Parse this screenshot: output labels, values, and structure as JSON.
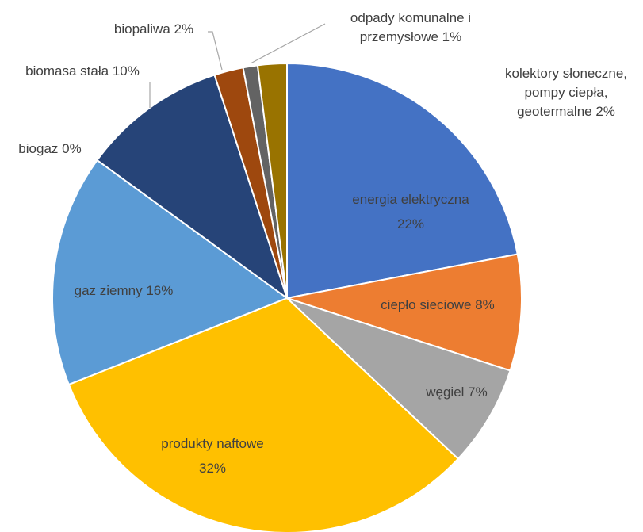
{
  "chart_data": {
    "type": "pie",
    "colors": {
      "energia elektryczna": "#4472C4",
      "ciepło sieciowe": "#ED7D31",
      "węgiel": "#A5A5A5",
      "produkty naftowe": "#FFC000",
      "gaz ziemny": "#5B9BD5",
      "biogaz": "#70AD47",
      "biomasa stała": "#264478",
      "biopaliwa": "#9E480E",
      "odpady komunalne i przemysłowe": "#636363",
      "kolektory słoneczne, pompy ciepła, geotermalne": "#997300"
    },
    "slices": [
      {
        "name": "energia elektryczna",
        "value": 22,
        "label_lines": [
          "energia elektryczna",
          "22%"
        ]
      },
      {
        "name": "ciepło sieciowe",
        "value": 8,
        "label_lines": [
          "ciepło sieciowe  8%"
        ]
      },
      {
        "name": "węgiel",
        "value": 7,
        "label_lines": [
          "węgiel  7%"
        ]
      },
      {
        "name": "produkty naftowe",
        "value": 32,
        "label_lines": [
          "produkty naftowe",
          "32%"
        ]
      },
      {
        "name": "gaz ziemny",
        "value": 16,
        "label_lines": [
          "gaz ziemny  16%"
        ]
      },
      {
        "name": "biogaz",
        "value": 0,
        "label_lines": [
          "biogaz  0%"
        ]
      },
      {
        "name": "biomasa stała",
        "value": 10,
        "label_lines": [
          "biomasa stała  10%"
        ]
      },
      {
        "name": "biopaliwa",
        "value": 2,
        "label_lines": [
          "biopaliwa  2%"
        ]
      },
      {
        "name": "odpady komunalne i przemysłowe",
        "value": 1,
        "label_lines": [
          "odpady komunalne i",
          "przemysłowe  1%"
        ]
      },
      {
        "name": "kolektory słoneczne, pompy ciepła, geotermalne",
        "value": 2,
        "label_lines": [
          "kolektory słoneczne,",
          "pompy ciepła,",
          "geotermalne  2%"
        ]
      }
    ]
  }
}
